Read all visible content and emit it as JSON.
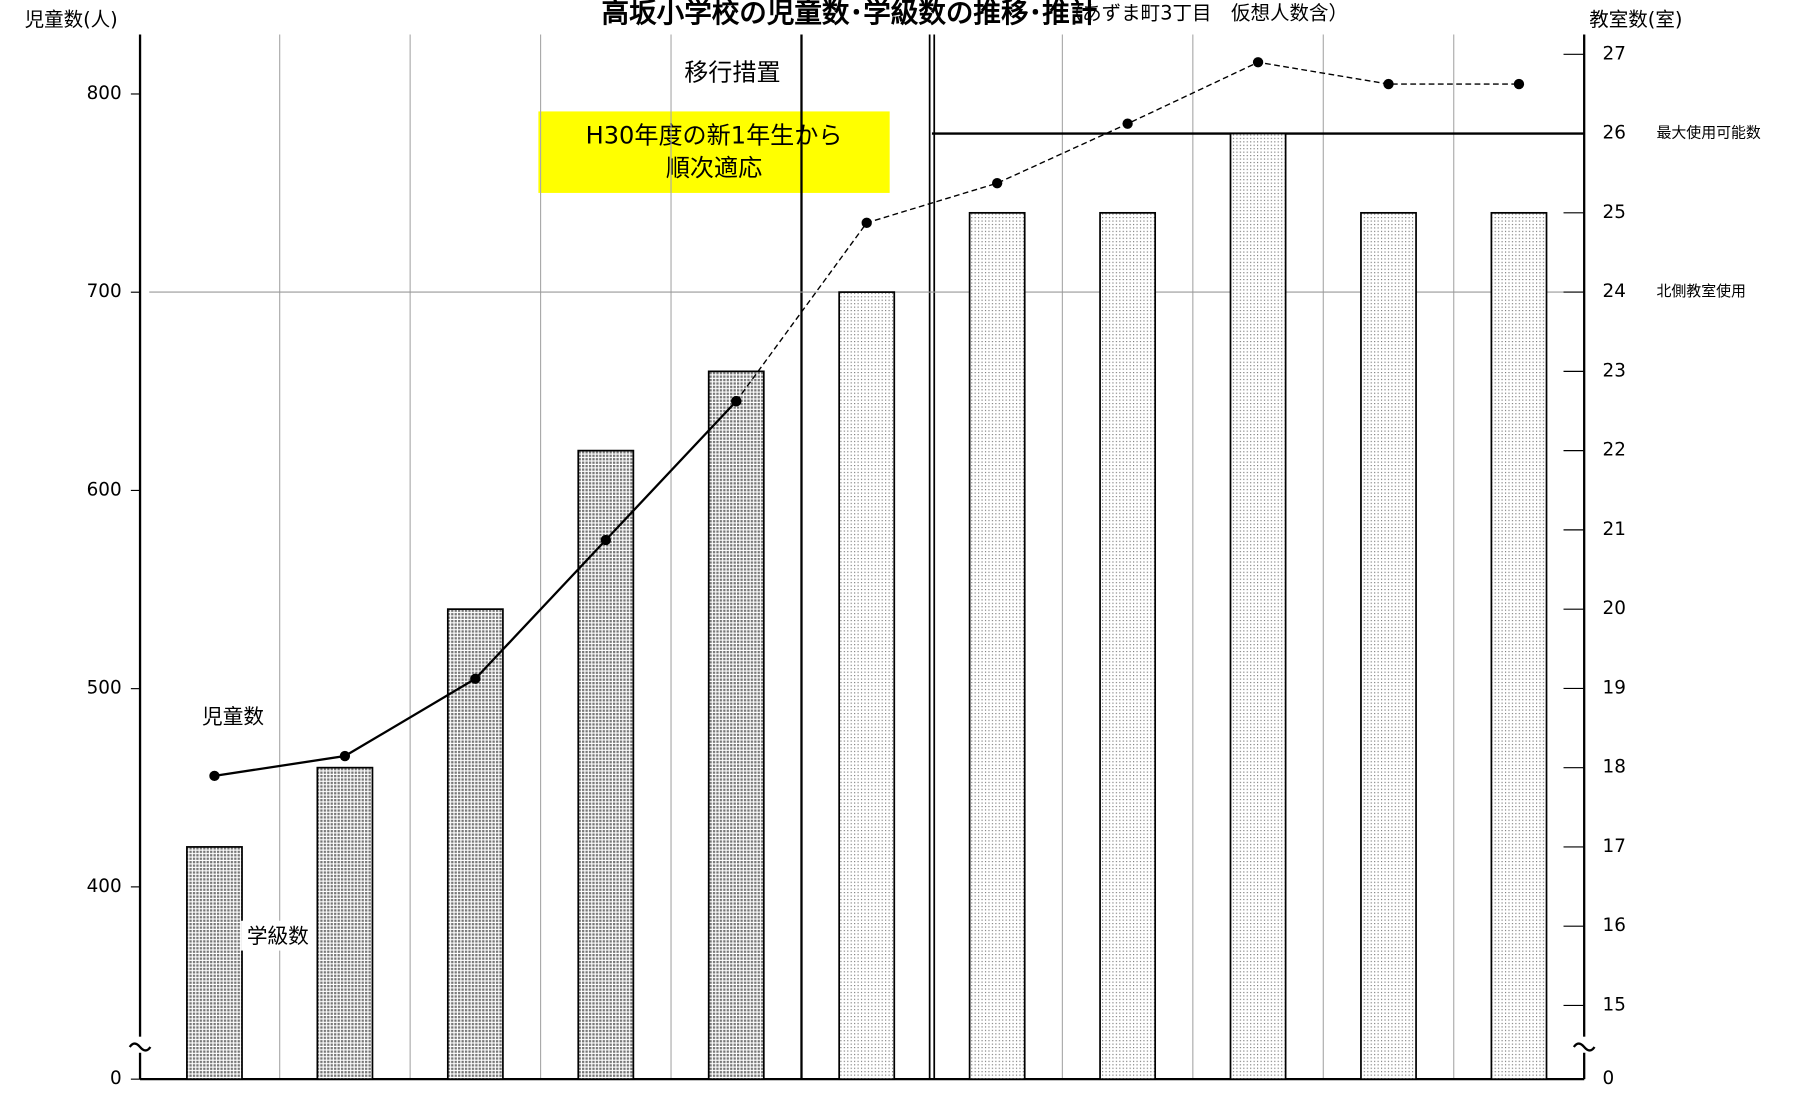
{
  "chart_data": {
    "type": "bar_line",
    "title": "高坂小学校の児童数･学級数の推移･推計",
    "subtitle": "（あずま町3丁目　仮想人数含）",
    "y_label": "児童数(人)",
    "y2_label": "教室数(室)",
    "annotations": [
      "移行措置"
    ],
    "highlight_box": [
      "H30年度の新1年生から",
      "順次適応"
    ],
    "categories": [
      null,
      null,
      null,
      null,
      null,
      null,
      null,
      null,
      null,
      null,
      null
    ],
    "series": [
      {
        "name": "学級数",
        "type": "bar",
        "axis": "y2",
        "color": "#8c8c8c",
        "values": [
          17,
          18,
          20,
          22,
          23,
          null,
          null,
          null,
          null,
          null,
          null
        ]
      },
      {
        "type": "bar",
        "axis": "y2",
        "color": "#c8c8c8",
        "values": [
          null,
          null,
          null,
          null,
          null,
          24,
          25,
          25,
          26,
          25,
          25
        ]
      },
      {
        "name": "児童数",
        "type": "line",
        "axis": "y",
        "color": "#000000",
        "dash": false,
        "values": [
          456,
          466,
          505,
          575,
          645,
          null,
          null,
          null,
          null,
          null,
          null
        ]
      },
      {
        "type": "line",
        "axis": "y",
        "color": "#000000",
        "dash": true,
        "values": [
          null,
          null,
          null,
          null,
          645,
          735,
          755,
          785,
          816,
          805,
          805
        ]
      }
    ],
    "reference_lines": [
      {
        "value": 26,
        "label": "最大使用可能数",
        "color": "#000000"
      },
      {
        "value": 24,
        "label": "北側教室使用",
        "color": "#999999"
      }
    ],
    "ylim": [
      0,
      830
    ],
    "axis_break": [
      0,
      303
    ],
    "yticks": [
      0,
      400,
      500,
      600,
      700,
      800
    ],
    "y2lim": [
      0,
      27.25
    ],
    "y2_axis_break": [
      0,
      14.07
    ],
    "y2ticks": [
      0,
      15,
      16,
      17,
      18,
      19,
      20,
      21,
      22,
      23,
      24,
      25,
      26,
      27
    ],
    "grid": true
  }
}
